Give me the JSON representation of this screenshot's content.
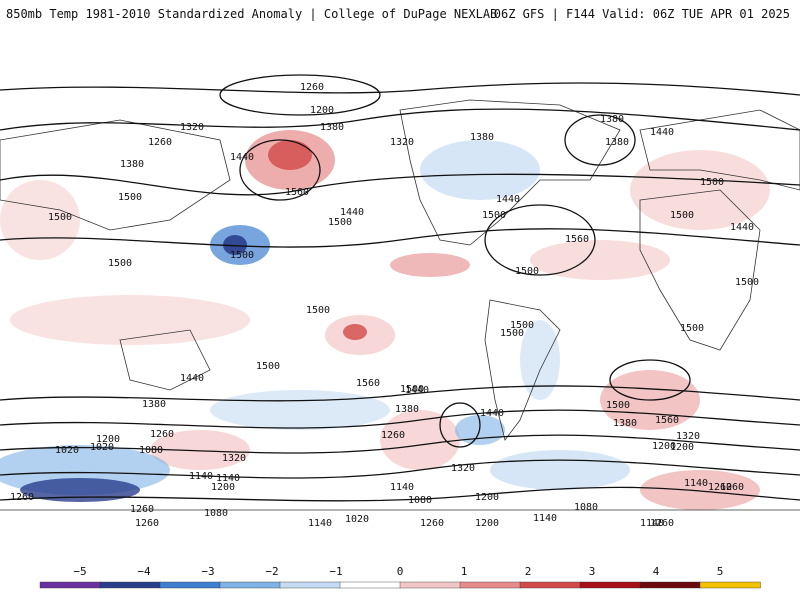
{
  "header": {
    "title_left": "850mb Temp 1981-2010 Standardized Anomaly | College of DuPage NEXLAB",
    "title_right": "06Z GFS | F144 Valid: 06Z TUE APR 01 2025"
  },
  "map": {
    "contour_labels": [
      "1260",
      "1200",
      "1320",
      "1380",
      "1380",
      "1260",
      "1440",
      "1380",
      "1320",
      "1440",
      "1380",
      "1380",
      "1500",
      "1560",
      "1500",
      "1500",
      "1440",
      "1500",
      "1440",
      "1500",
      "1500",
      "1500",
      "1560",
      "1500",
      "1440",
      "1500",
      "1500",
      "1500",
      "1500",
      "1500",
      "1500",
      "1500",
      "1560",
      "1440",
      "1500",
      "1380",
      "1440",
      "1500",
      "1560",
      "1440",
      "1380",
      "1380",
      "1320",
      "1260",
      "1200",
      "1260",
      "1320",
      "1200",
      "1140",
      "1200",
      "1020",
      "1080",
      "1140",
      "1320",
      "1260",
      "1140",
      "1200",
      "1140",
      "1080",
      "1260",
      "1020",
      "1260",
      "1080",
      "1140",
      "1020",
      "1140",
      "1200",
      "1260",
      "1260",
      "1080",
      "1140",
      "1200",
      "1260",
      "1260"
    ]
  },
  "colorbar": {
    "ticks": [
      "−5",
      "−4",
      "−3",
      "−2",
      "−1",
      "0",
      "1",
      "2",
      "3",
      "4",
      "5"
    ],
    "colors": [
      "#6a2fa0",
      "#2a3f8c",
      "#3f7fd0",
      "#7fb3e6",
      "#c4dcf3",
      "#ffffff",
      "#f3c6c6",
      "#e68a8a",
      "#d24a4a",
      "#a8101a",
      "#6a0a0f",
      "#f2c200"
    ]
  }
}
